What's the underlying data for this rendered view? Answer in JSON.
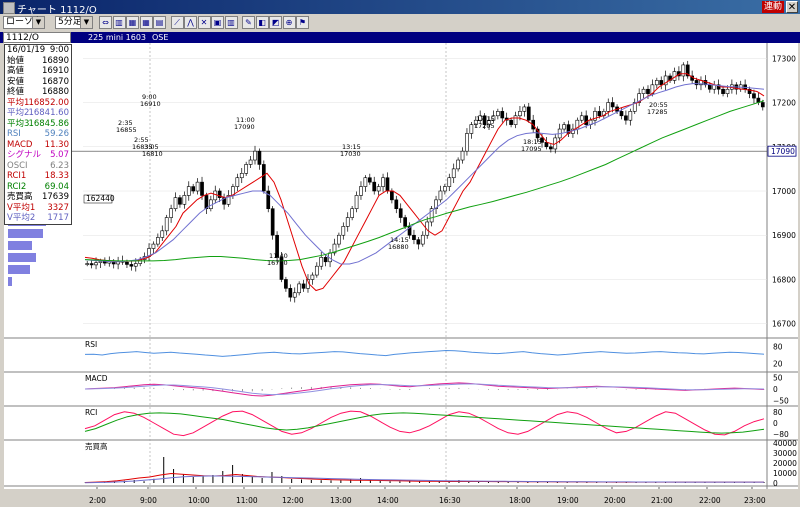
{
  "window": {
    "title": "チャート  1112/O",
    "link_button": "連動",
    "close_glyph": "✕"
  },
  "toolbar": {
    "chart_type": "ローソク",
    "interval": "5分足",
    "buttons": [
      {
        "icon": "sync-icon",
        "glyph": "⇔"
      },
      {
        "icon": "candle-chart-icon",
        "glyph": "▥"
      },
      {
        "icon": "bar-chart-icon",
        "glyph": "▦"
      },
      {
        "icon": "grid-chart-icon",
        "glyph": "▦"
      },
      {
        "icon": "table-icon",
        "glyph": "▤"
      },
      {
        "icon": "trend-line-icon",
        "glyph": "⟋"
      },
      {
        "icon": "zigzag-icon",
        "glyph": "⋀"
      },
      {
        "icon": "cross-icon",
        "glyph": "✕"
      },
      {
        "icon": "layers-icon",
        "glyph": "▣"
      },
      {
        "icon": "columns-icon",
        "glyph": "▥"
      },
      {
        "icon": "pen-icon",
        "glyph": "✎"
      },
      {
        "icon": "eraser-icon",
        "glyph": "◧"
      },
      {
        "icon": "stamp-icon",
        "glyph": "◩"
      },
      {
        "icon": "zoom-icon",
        "glyph": "⊕"
      },
      {
        "icon": "flag-icon",
        "glyph": "⚑"
      }
    ]
  },
  "symbol": {
    "code": "1112/O",
    "name": "225 mini 1603",
    "exchange": "OSE"
  },
  "info": [
    {
      "label": "16/01/19",
      "value": "9:00",
      "color": "#000000"
    },
    {
      "label": "始値",
      "value": "16890",
      "color": "#000000"
    },
    {
      "label": "高値",
      "value": "16910",
      "color": "#000000"
    },
    {
      "label": "安値",
      "value": "16870",
      "color": "#000000"
    },
    {
      "label": "終値",
      "value": "16880",
      "color": "#000000"
    },
    {
      "label": "平均1",
      "value": "16852.00",
      "color": "#c00000"
    },
    {
      "label": "平均2",
      "value": "16841.60",
      "color": "#6060c0"
    },
    {
      "label": "平均3",
      "value": "16845.86",
      "color": "#008000"
    },
    {
      "label": "RSI",
      "value": "59.26",
      "color": "#4f81bd"
    },
    {
      "label": "MACD",
      "value": "11.30",
      "color": "#c00000"
    },
    {
      "label": "シグナル",
      "value": "5.07",
      "color": "#c000c0"
    },
    {
      "label": "OSCI",
      "value": "6.23",
      "color": "#808080"
    },
    {
      "label": "RCI1",
      "value": "18.33",
      "color": "#c00000"
    },
    {
      "label": "RCI2",
      "value": "69.04",
      "color": "#008000"
    },
    {
      "label": "売買高",
      "value": "17639",
      "color": "#000000"
    },
    {
      "label": "V平均1",
      "value": "3327",
      "color": "#c00000"
    },
    {
      "label": "V平均2",
      "value": "1717",
      "color": "#6060c0"
    }
  ],
  "colors": {
    "ma1": "#e00000",
    "ma2": "#7070d0",
    "ma3": "#10a010",
    "rsi": "#5090e0",
    "macd": "#e0208f",
    "signal": "#9090e0",
    "rci1": "#ff1060",
    "rci2": "#10a010",
    "volume": "#000000",
    "vma1": "#e00000",
    "vma2": "#7070d0",
    "profile": "#8080e0"
  },
  "chart_data": {
    "type": "candlestick",
    "price_axis": {
      "ticks": [
        17300,
        17200,
        17100,
        17000,
        16900,
        16800,
        16700
      ],
      "ylim": [
        16670,
        17330
      ]
    },
    "current_price": "17090",
    "x_axis": {
      "labels": [
        "2:00",
        "9:00",
        "10:00",
        "11:00",
        "12:00",
        "13:00",
        "14:00",
        "16:30",
        "18:00",
        "19:00",
        "20:00",
        "21:00",
        "22:00",
        "23:00"
      ]
    },
    "annotations": [
      {
        "time": "2:35",
        "price": "16855"
      },
      {
        "time": "2:55",
        "price": "16835"
      },
      {
        "time": "3:05",
        "price": "16810"
      },
      {
        "time": "9:00",
        "price": "16910"
      },
      {
        "time": "11:00",
        "price": "17090"
      },
      {
        "time": "11:40",
        "price": "16750"
      },
      {
        "time": "13:15",
        "price": "17030"
      },
      {
        "time": "14:15",
        "price": "16880"
      },
      {
        "time": "17:15",
        "price": "17205"
      },
      {
        "time": "18:15",
        "price": "17095"
      },
      {
        "time": "20:55",
        "price": "17285"
      }
    ],
    "volume_profile_label": "162440",
    "candles": [
      16836,
      16833,
      16838,
      16841,
      16837,
      16840,
      16835,
      16842,
      16839,
      16834,
      16830,
      16836,
      16845,
      16852,
      16870,
      16880,
      16895,
      16910,
      16940,
      16960,
      16985,
      16970,
      16990,
      17010,
      17000,
      17020,
      16990,
      16960,
      16980,
      17000,
      16985,
      16970,
      16990,
      17010,
      17030,
      17040,
      17060,
      17070,
      17090,
      17060,
      17000,
      16960,
      16900,
      16850,
      16800,
      16780,
      16760,
      16770,
      16790,
      16780,
      16800,
      16810,
      16830,
      16850,
      16840,
      16860,
      16880,
      16900,
      16920,
      16940,
      16960,
      16990,
      17010,
      17030,
      17020,
      17000,
      17010,
      17030,
      17000,
      16980,
      16960,
      16940,
      16920,
      16900,
      16890,
      16880,
      16900,
      16930,
      16960,
      16980,
      17000,
      17010,
      17030,
      17050,
      17070,
      17090,
      17130,
      17150,
      17160,
      17170,
      17150,
      17160,
      17170,
      17180,
      17165,
      17160,
      17150,
      17170,
      17180,
      17190,
      17160,
      17140,
      17120,
      17110,
      17100,
      17095,
      17120,
      17140,
      17150,
      17130,
      17140,
      17160,
      17170,
      17150,
      17160,
      17180,
      17170,
      17180,
      17200,
      17190,
      17180,
      17170,
      17160,
      17180,
      17200,
      17220,
      17230,
      17220,
      17240,
      17250,
      17240,
      17260,
      17250,
      17270,
      17260,
      17285,
      17260,
      17250,
      17240,
      17250,
      17240,
      17230,
      17240,
      17230,
      17220,
      17230,
      17240,
      17230,
      17240,
      17230,
      17220,
      17210,
      17200,
      17190
    ],
    "ma1": [
      16850,
      16848,
      16845,
      16843,
      16842,
      16840,
      16841,
      16842,
      16845,
      16850,
      16860,
      16880,
      16900,
      16920,
      16950,
      16965,
      16980,
      16990,
      16995,
      16990,
      16985,
      16990,
      17000,
      17010,
      17020,
      17030,
      17040,
      17020,
      16980,
      16930,
      16880,
      16830,
      16790,
      16775,
      16780,
      16800,
      16820,
      16840,
      16870,
      16900,
      16930,
      16960,
      16990,
      17000,
      17000,
      16990,
      16970,
      16950,
      16930,
      16910,
      16900,
      16910,
      16940,
      16970,
      17000,
      17020,
      17050,
      17080,
      17110,
      17140,
      17160,
      17165,
      17165,
      17160,
      17150,
      17130,
      17110,
      17105,
      17115,
      17130,
      17140,
      17150,
      17160,
      17165,
      17170,
      17180,
      17185,
      17190,
      17195,
      17200,
      17210,
      17220,
      17235,
      17245,
      17255,
      17265,
      17265,
      17255,
      17250,
      17245,
      17240,
      17235,
      17235,
      17232,
      17230,
      17228,
      17225,
      17215
    ],
    "ma2": [
      16845,
      16843,
      16842,
      16840,
      16840,
      16842,
      16845,
      16852,
      16860,
      16875,
      16890,
      16910,
      16930,
      16950,
      16965,
      16975,
      16985,
      16990,
      16995,
      17000,
      17000,
      16990,
      16970,
      16950,
      16925,
      16900,
      16880,
      16860,
      16845,
      16835,
      16835,
      16840,
      16850,
      16860,
      16875,
      16890,
      16905,
      16920,
      16935,
      16950,
      16965,
      16980,
      17000,
      17020,
      17040,
      17060,
      17080,
      17100,
      17115,
      17125,
      17130,
      17132,
      17130,
      17128,
      17130,
      17135,
      17140,
      17148,
      17155,
      17165,
      17175,
      17185,
      17195,
      17205,
      17215,
      17222,
      17228,
      17235,
      17240,
      17243,
      17242,
      17240,
      17238,
      17236,
      17235,
      17234,
      17232,
      17230
    ],
    "ma3": [
      16845,
      16844,
      16843,
      16842,
      16842,
      16842,
      16842,
      16843,
      16845,
      16848,
      16850,
      16852,
      16852,
      16850,
      16848,
      16845,
      16843,
      16842,
      16843,
      16845,
      16850,
      16855,
      16862,
      16870,
      16878,
      16886,
      16895,
      16905,
      16915,
      16925,
      16935,
      16942,
      16950,
      16957,
      16964,
      16970,
      16976,
      16983,
      16990,
      16997,
      17005,
      17013,
      17021,
      17030,
      17040,
      17050,
      17060,
      17072,
      17084,
      17096,
      17108,
      17120,
      17130,
      17140,
      17150,
      17160,
      17170,
      17180,
      17188,
      17196,
      17204
    ],
    "rsi": [
      52,
      53,
      50,
      55,
      58,
      60,
      62,
      59,
      56,
      58,
      60,
      57,
      55,
      53,
      50,
      48,
      45,
      47,
      50,
      53,
      56,
      58,
      60,
      57,
      55,
      54,
      56,
      58,
      60,
      62,
      61,
      58,
      55,
      53,
      50,
      48,
      52,
      55,
      58,
      60,
      62,
      64,
      66,
      65,
      63,
      60,
      58,
      56,
      55,
      57,
      60,
      62,
      58,
      55,
      53,
      50,
      52,
      55,
      58,
      60,
      62,
      60,
      58,
      56,
      57,
      59,
      61,
      62,
      60,
      58,
      57,
      55,
      54,
      56,
      58,
      60,
      59,
      57,
      55,
      53
    ],
    "macd": [
      0,
      2,
      4,
      6,
      10,
      14,
      18,
      20,
      18,
      14,
      10,
      6,
      2,
      -4,
      -10,
      -16,
      -22,
      -28,
      -30,
      -26,
      -20,
      -14,
      -8,
      -2,
      4,
      10,
      14,
      18,
      20,
      22,
      20,
      16,
      12,
      10,
      14,
      18,
      22,
      24,
      26,
      24,
      20,
      16,
      12,
      10,
      8,
      6,
      4,
      2,
      4,
      6,
      8,
      10,
      12,
      10,
      8,
      6,
      4,
      2,
      0,
      -2,
      -4,
      -6,
      -4,
      -2,
      0,
      2,
      4,
      2,
      0,
      -2
    ],
    "signal": [
      0,
      1,
      2,
      4,
      6,
      9,
      12,
      15,
      17,
      17,
      15,
      12,
      9,
      5,
      0,
      -6,
      -12,
      -18,
      -22,
      -24,
      -23,
      -20,
      -16,
      -11,
      -5,
      1,
      6,
      11,
      15,
      18,
      19,
      18,
      16,
      14,
      14,
      15,
      17,
      19,
      21,
      22,
      21,
      19,
      16,
      14,
      12,
      10,
      8,
      6,
      5,
      5,
      6,
      7,
      9,
      10,
      9,
      8,
      7,
      5,
      3,
      1,
      -1,
      -3,
      -3,
      -3,
      -2,
      -1,
      0,
      1,
      1,
      0
    ],
    "rci1": [
      -40,
      -20,
      20,
      60,
      80,
      70,
      40,
      0,
      -40,
      -80,
      -90,
      -70,
      -30,
      10,
      50,
      80,
      85,
      60,
      20,
      -20,
      -60,
      -80,
      -70,
      -40,
      0,
      40,
      70,
      85,
      80,
      50,
      10,
      -30,
      -60,
      -70,
      -50,
      -20,
      20,
      60,
      80,
      70,
      40,
      0,
      -40,
      -70,
      -80,
      -60,
      -20,
      20,
      60,
      80,
      70,
      40,
      0,
      -40,
      -70,
      -60,
      -30,
      10,
      50,
      80,
      70,
      30,
      -10,
      -50,
      -80,
      -85,
      -60,
      -20,
      10,
      30
    ],
    "rci2": [
      -60,
      -40,
      -10,
      20,
      45,
      60,
      70,
      72,
      70,
      65,
      55,
      45,
      35,
      25,
      10,
      -5,
      -20,
      -35,
      -45,
      -50,
      -45,
      -35,
      -20,
      -5,
      10,
      25,
      40,
      55,
      65,
      70,
      72,
      70,
      65,
      60,
      55,
      50,
      45,
      40,
      35,
      30,
      25,
      20,
      15,
      10,
      5,
      0,
      -5,
      -10,
      -15,
      -20,
      -25,
      -30,
      -35,
      -40,
      -45,
      -50,
      -55,
      -60,
      -65,
      -70,
      -72,
      -70,
      -65,
      -55,
      -45
    ],
    "volume": [
      400,
      800,
      600,
      1200,
      2200,
      3000,
      1800,
      4200,
      26000,
      14000,
      9000,
      6000,
      7500,
      8000,
      12000,
      18000,
      9000,
      6000,
      5000,
      11000,
      7000,
      4000,
      3500,
      3000,
      2800,
      2600,
      2500,
      4000,
      5000,
      2800,
      2000,
      1800,
      1600,
      1500,
      1400,
      1300,
      1500,
      2500,
      3000,
      2000,
      1600,
      1500,
      1400,
      1200,
      1100,
      1000,
      1500,
      1200,
      1000,
      900,
      800,
      700,
      900,
      1100,
      1000,
      900,
      800,
      700,
      800,
      900,
      1000,
      1100,
      1000,
      900,
      800,
      700,
      900,
      1100,
      1200,
      1000
    ],
    "vma1": [
      500,
      900,
      1400,
      2200,
      3500,
      5000,
      6000,
      8000,
      9500,
      8800,
      8000,
      7200,
      7000,
      7500,
      8500,
      7500,
      6500,
      6000,
      5600,
      5000,
      4500,
      4000,
      3600,
      3300,
      3000,
      2800,
      2700,
      2600,
      2400,
      2200,
      2000,
      1800,
      1700,
      1600,
      1500,
      1500,
      1500,
      1500,
      1450,
      1400,
      1350,
      1300,
      1250,
      1200,
      1150,
      1100,
      1050,
      1000,
      1000,
      950,
      900,
      900,
      900,
      900,
      900,
      900,
      900,
      900,
      900,
      900,
      950,
      950,
      950,
      950
    ],
    "vma2": [
      300,
      500,
      800,
      1300,
      2000,
      3000,
      4000,
      5200,
      6200,
      6800,
      7000,
      7000,
      6800,
      6500,
      6200,
      5900,
      5600,
      5300,
      5000,
      4700,
      4400,
      4100,
      3800,
      3500,
      3300,
      3100,
      2900,
      2700,
      2500,
      2300,
      2100,
      2000,
      1900,
      1800,
      1700,
      1600,
      1500,
      1400,
      1350,
      1300,
      1250,
      1200,
      1150,
      1100,
      1050,
      1000,
      980,
      960,
      940,
      920,
      900,
      890,
      880,
      870,
      860,
      850
    ],
    "indicator_axes": {
      "rsi": [
        "80",
        "20"
      ],
      "macd": [
        "50",
        "0",
        "−50"
      ],
      "rci": [
        "80",
        "0",
        "−80"
      ],
      "volume": [
        "40000",
        "30000",
        "20000",
        "10000",
        "0"
      ]
    },
    "panel_labels": [
      "RSI",
      "MACD",
      "RCI",
      "売買高"
    ]
  }
}
